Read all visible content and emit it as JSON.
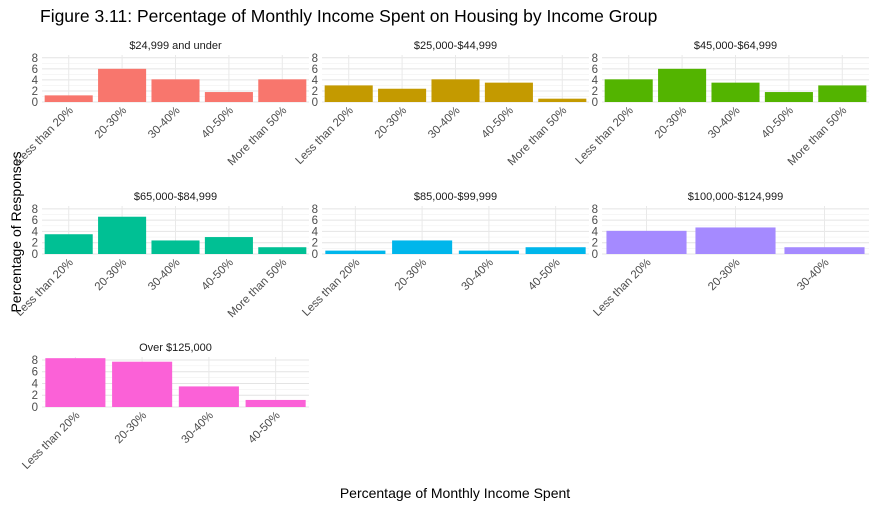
{
  "chart_data": {
    "type": "bar",
    "title": "Figure 3.11: Percentage of Monthly Income Spent on Housing by Income Group",
    "xlabel": "Percentage of Monthly Income Spent",
    "ylabel": "Percentage of Responses",
    "ylim": [
      0,
      8.5
    ],
    "yticks": [
      0,
      2,
      4,
      6,
      8
    ],
    "grid": true,
    "legend": "none",
    "facets": [
      {
        "name": "$24,999 and under",
        "color": "#F8766D",
        "categories": [
          "Less than 20%",
          "20-30%",
          "30-40%",
          "40-50%",
          "More than 50%"
        ],
        "values": [
          1.2,
          6.0,
          4.1,
          1.8,
          4.1
        ]
      },
      {
        "name": "$25,000-$44,999",
        "color": "#C49A00",
        "categories": [
          "Less than 20%",
          "20-30%",
          "30-40%",
          "40-50%",
          "More than 50%"
        ],
        "values": [
          3.0,
          2.4,
          4.1,
          3.5,
          0.6
        ]
      },
      {
        "name": "$45,000-$64,999",
        "color": "#53B400",
        "categories": [
          "Less than 20%",
          "20-30%",
          "30-40%",
          "40-50%",
          "More than 50%"
        ],
        "values": [
          4.1,
          6.0,
          3.5,
          1.8,
          3.0
        ]
      },
      {
        "name": "$65,000-$84,999",
        "color": "#00C094",
        "categories": [
          "Less than 20%",
          "20-30%",
          "30-40%",
          "40-50%",
          "More than 50%"
        ],
        "values": [
          3.5,
          6.6,
          2.4,
          3.0,
          1.2
        ]
      },
      {
        "name": "$85,000-$99,999",
        "color": "#00B6EB",
        "categories": [
          "Less than 20%",
          "20-30%",
          "30-40%",
          "40-50%"
        ],
        "values": [
          0.6,
          2.4,
          0.6,
          1.2
        ]
      },
      {
        "name": "$100,000-$124,999",
        "color": "#A58AFF",
        "categories": [
          "Less than 20%",
          "20-30%",
          "30-40%"
        ],
        "values": [
          4.1,
          4.7,
          1.2
        ]
      },
      {
        "name": "Over $125,000",
        "color": "#FB61D7",
        "categories": [
          "Less than 20%",
          "20-30%",
          "30-40%",
          "40-50%"
        ],
        "values": [
          8.3,
          7.7,
          3.5,
          1.2
        ]
      }
    ]
  }
}
